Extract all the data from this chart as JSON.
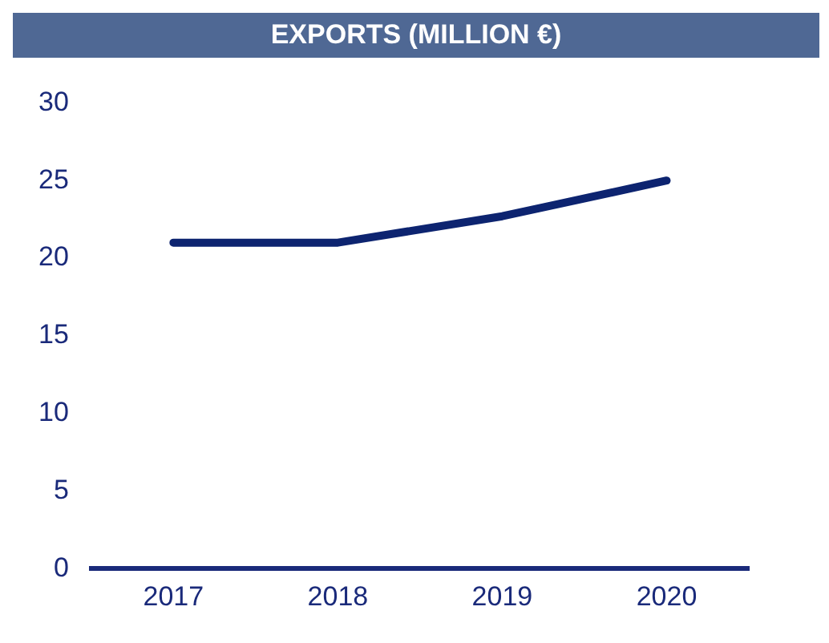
{
  "chart_data": {
    "type": "line",
    "title": "EXPORTS (MILLION €)",
    "categories": [
      "2017",
      "2018",
      "2019",
      "2020"
    ],
    "series": [
      {
        "color": "#0d2470",
        "values": [
          21,
          21,
          22.7,
          25
        ]
      }
    ],
    "ylim": [
      0,
      30
    ],
    "yticks": [
      0,
      5,
      10,
      15,
      20,
      25,
      30
    ],
    "grid": false,
    "legend": false,
    "marker": "none"
  }
}
